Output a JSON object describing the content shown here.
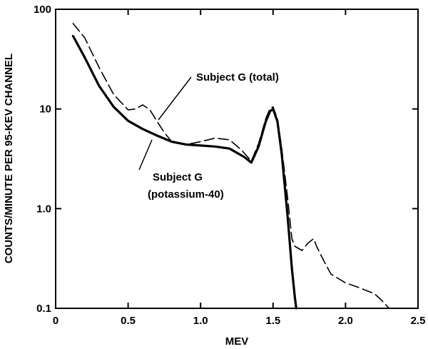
{
  "chart_data": {
    "type": "line",
    "title": "",
    "xlabel": "MEV",
    "ylabel": "COUNTS/MINUTE PER 95-KEV CHANNEL",
    "xlim": [
      0,
      2.5
    ],
    "ylim": [
      0.1,
      100
    ],
    "yscale": "log",
    "grid": false,
    "legend": "none",
    "x_ticks": [
      "0",
      "0.5",
      "1.0",
      "1.5",
      "2.0",
      "2.5"
    ],
    "y_ticks": [
      "0.1",
      "1.0",
      "10",
      "100"
    ],
    "series": [
      {
        "name": "Subject G (total)",
        "style": "dashed",
        "color": "#000000",
        "x": [
          0.12,
          0.2,
          0.3,
          0.4,
          0.5,
          0.55,
          0.6,
          0.65,
          0.7,
          0.75,
          0.8,
          0.9,
          1.0,
          1.1,
          1.2,
          1.28,
          1.35,
          1.4,
          1.45,
          1.48,
          1.5,
          1.53,
          1.56,
          1.6,
          1.63,
          1.65,
          1.7,
          1.74,
          1.78,
          1.8,
          1.85,
          1.9,
          2.0,
          2.1,
          2.2,
          2.25,
          2.3
        ],
        "y": [
          72,
          52,
          26,
          14,
          9.8,
          10,
          11.0,
          9.8,
          7.5,
          5.8,
          4.7,
          4.4,
          4.7,
          5.1,
          4.9,
          3.9,
          3.0,
          4.5,
          8.0,
          10.2,
          10.5,
          8.0,
          4.0,
          1.3,
          0.5,
          0.42,
          0.38,
          0.45,
          0.5,
          0.42,
          0.3,
          0.22,
          0.18,
          0.16,
          0.14,
          0.12,
          0.1
        ]
      },
      {
        "name": "Subject G (potassium-40)",
        "style": "solid",
        "color": "#000000",
        "x": [
          0.12,
          0.2,
          0.3,
          0.4,
          0.5,
          0.6,
          0.7,
          0.8,
          0.9,
          1.0,
          1.1,
          1.2,
          1.3,
          1.35,
          1.4,
          1.45,
          1.48,
          1.5,
          1.53,
          1.56,
          1.6,
          1.63,
          1.65,
          1.66
        ],
        "y": [
          54,
          33,
          17,
          10.5,
          7.6,
          6.3,
          5.4,
          4.7,
          4.4,
          4.3,
          4.2,
          4.0,
          3.3,
          2.9,
          4.2,
          7.5,
          9.5,
          10.0,
          7.5,
          3.5,
          0.85,
          0.25,
          0.13,
          0.1
        ]
      }
    ],
    "annotations": [
      {
        "text": "Subject G (total)"
      },
      {
        "text": "Subject G"
      },
      {
        "text": "(potassium-40)"
      }
    ]
  }
}
